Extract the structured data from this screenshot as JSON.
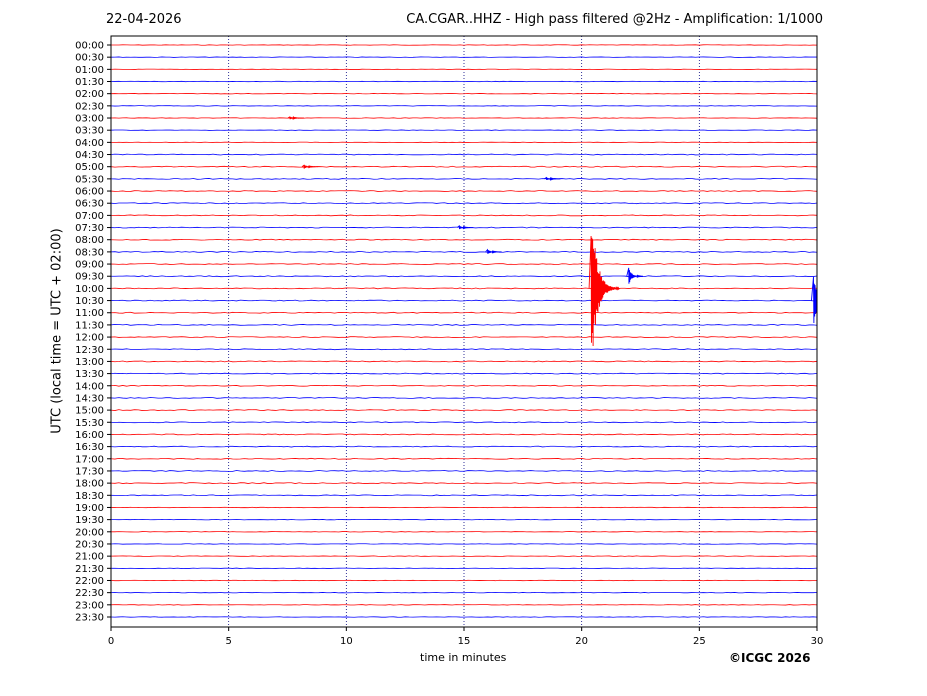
{
  "header": {
    "date": "22-04-2026",
    "title": "CA.CGAR..HHZ - High pass filtered @2Hz - Amplification: 1/1000"
  },
  "footer": {
    "copyright": "©ICGC 2026"
  },
  "colors": {
    "trace_a": "#ff0000",
    "trace_b": "#0000ff",
    "grid": "#000080",
    "axis": "#000000"
  },
  "chart_data": {
    "type": "line",
    "title": "CA.CGAR..HHZ - High pass filtered @2Hz - Amplification: 1/1000",
    "xlabel": "time in minutes",
    "ylabel": "UTC (local time = UTC + 02:00)",
    "xlim": [
      0,
      30
    ],
    "xticks": [
      0,
      5,
      10,
      15,
      20,
      25,
      30
    ],
    "grid": "vertical-dotted",
    "rows": [
      "00:00",
      "00:30",
      "01:00",
      "01:30",
      "02:00",
      "02:30",
      "03:00",
      "03:30",
      "04:00",
      "04:30",
      "05:00",
      "05:30",
      "06:00",
      "06:30",
      "07:00",
      "07:30",
      "08:00",
      "08:30",
      "09:00",
      "09:30",
      "10:00",
      "10:30",
      "11:00",
      "11:30",
      "12:00",
      "12:30",
      "13:00",
      "13:30",
      "14:00",
      "14:30",
      "15:00",
      "15:30",
      "16:00",
      "16:30",
      "17:00",
      "17:30",
      "18:00",
      "18:30",
      "19:00",
      "19:30",
      "20:00",
      "20:30",
      "21:00",
      "21:30",
      "22:00",
      "22:30",
      "23:00",
      "23:30"
    ],
    "row_colors": [
      "red",
      "blue"
    ],
    "events": [
      {
        "row": "10:00",
        "minute": 20.4,
        "amplitude": 6.8,
        "color": "red"
      },
      {
        "row": "09:30",
        "minute": 22.0,
        "amplitude": 0.7,
        "color": "blue"
      },
      {
        "row": "10:30",
        "minute": 29.85,
        "amplitude": 2.2,
        "color": "blue"
      },
      {
        "row": "05:00",
        "minute": 8.2,
        "amplitude": 0.18,
        "color": "red"
      },
      {
        "row": "05:30",
        "minute": 18.5,
        "amplitude": 0.15,
        "color": "blue"
      },
      {
        "row": "08:30",
        "minute": 16.0,
        "amplitude": 0.2,
        "color": "blue"
      },
      {
        "row": "07:30",
        "minute": 14.8,
        "amplitude": 0.15,
        "color": "blue"
      },
      {
        "row": "03:00",
        "minute": 7.6,
        "amplitude": 0.12,
        "color": "red"
      }
    ]
  }
}
